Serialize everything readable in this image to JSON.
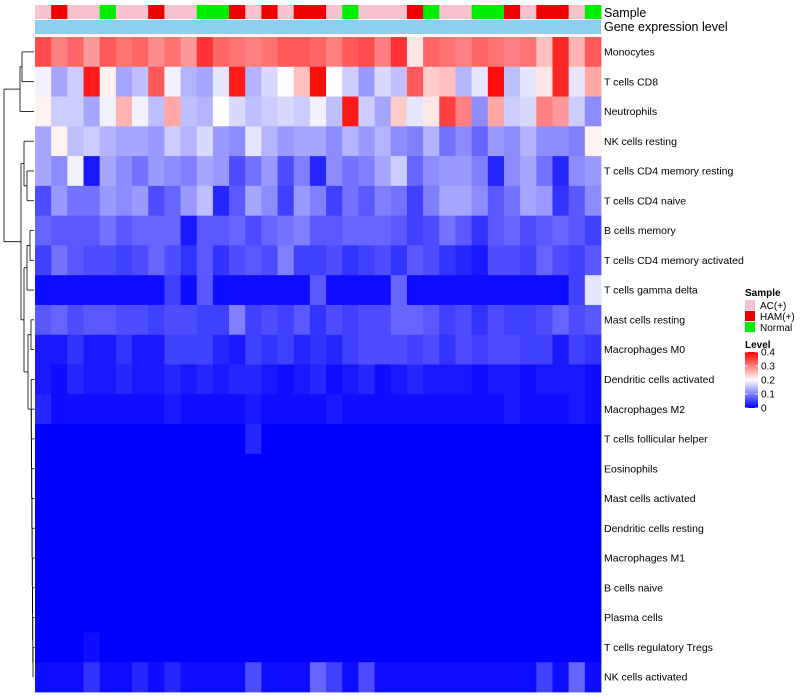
{
  "chart_data": {
    "type": "heatmap",
    "title": "",
    "annotation_labels": {
      "sample": "Sample",
      "expression": "Gene expression level"
    },
    "rows": [
      "Monocytes",
      "T cells CD8",
      "Neutrophils",
      "NK cells resting",
      "T cells CD4 memory resting",
      "T cells CD4 naive",
      "B cells memory",
      "T cells CD4 memory activated",
      "T cells gamma delta",
      "Mast cells resting",
      "Macrophages M0",
      "Dendritic cells activated",
      "Macrophages M2",
      "T cells follicular helper",
      "Eosinophils",
      "Mast cells activated",
      "Dendritic cells resting",
      "Macrophages M1",
      "B cells naive",
      "Plasma cells",
      "T cells regulatory  Tregs",
      "NK cells activated"
    ],
    "samples": [
      "AC(+)",
      "HAM(+)",
      "AC(+)",
      "AC(+)",
      "Normal",
      "AC(+)",
      "AC(+)",
      "HAM(+)",
      "AC(+)",
      "AC(+)",
      "Normal",
      "Normal",
      "HAM(+)",
      "AC(+)",
      "HAM(+)",
      "AC(+)",
      "HAM(+)",
      "HAM(+)",
      "AC(+)",
      "Normal",
      "AC(+)",
      "AC(+)",
      "AC(+)",
      "HAM(+)",
      "Normal",
      "AC(+)",
      "AC(+)",
      "Normal",
      "Normal",
      "HAM(+)",
      "AC(+)",
      "HAM(+)",
      "HAM(+)",
      "AC(+)",
      "Normal"
    ],
    "values": [
      [
        0.34,
        0.3,
        0.32,
        0.28,
        0.33,
        0.31,
        0.32,
        0.29,
        0.31,
        0.28,
        0.36,
        0.32,
        0.31,
        0.3,
        0.31,
        0.33,
        0.33,
        0.32,
        0.3,
        0.33,
        0.34,
        0.3,
        0.36,
        0.22,
        0.32,
        0.31,
        0.3,
        0.32,
        0.31,
        0.3,
        0.31,
        0.25,
        0.37,
        0.26,
        0.33
      ],
      [
        0.19,
        0.13,
        0.16,
        0.38,
        0.21,
        0.13,
        0.15,
        0.33,
        0.19,
        0.14,
        0.13,
        0.18,
        0.38,
        0.14,
        0.17,
        0.2,
        0.25,
        0.39,
        0.2,
        0.16,
        0.12,
        0.17,
        0.15,
        0.33,
        0.24,
        0.25,
        0.14,
        0.18,
        0.39,
        0.15,
        0.18,
        0.22,
        0.37,
        0.18,
        0.27
      ],
      [
        0.21,
        0.16,
        0.16,
        0.13,
        0.19,
        0.26,
        0.19,
        0.15,
        0.27,
        0.15,
        0.14,
        0.2,
        0.17,
        0.15,
        0.16,
        0.17,
        0.16,
        0.19,
        0.15,
        0.38,
        0.16,
        0.13,
        0.24,
        0.18,
        0.22,
        0.35,
        0.3,
        0.11,
        0.27,
        0.16,
        0.17,
        0.3,
        0.28,
        0.16,
        0.11
      ],
      [
        0.13,
        0.21,
        0.15,
        0.16,
        0.14,
        0.13,
        0.13,
        0.12,
        0.16,
        0.14,
        0.17,
        0.12,
        0.11,
        0.18,
        0.14,
        0.12,
        0.13,
        0.13,
        0.11,
        0.14,
        0.12,
        0.14,
        0.11,
        0.1,
        0.14,
        0.09,
        0.11,
        0.08,
        0.12,
        0.11,
        0.14,
        0.11,
        0.11,
        0.1,
        0.21
      ],
      [
        0.13,
        0.11,
        0.19,
        0.02,
        0.13,
        0.11,
        0.09,
        0.12,
        0.11,
        0.1,
        0.13,
        0.12,
        0.06,
        0.09,
        0.12,
        0.06,
        0.1,
        0.03,
        0.11,
        0.09,
        0.1,
        0.13,
        0.16,
        0.08,
        0.11,
        0.12,
        0.12,
        0.1,
        0.03,
        0.11,
        0.13,
        0.09,
        0.03,
        0.11,
        0.12
      ],
      [
        0.06,
        0.12,
        0.09,
        0.09,
        0.12,
        0.11,
        0.12,
        0.06,
        0.08,
        0.12,
        0.15,
        0.03,
        0.07,
        0.13,
        0.11,
        0.05,
        0.12,
        0.1,
        0.05,
        0.09,
        0.07,
        0.1,
        0.09,
        0.05,
        0.1,
        0.13,
        0.13,
        0.11,
        0.07,
        0.09,
        0.13,
        0.12,
        0.04,
        0.07,
        0.11
      ],
      [
        0.08,
        0.07,
        0.07,
        0.07,
        0.09,
        0.07,
        0.08,
        0.08,
        0.08,
        0.02,
        0.07,
        0.07,
        0.08,
        0.06,
        0.08,
        0.09,
        0.1,
        0.07,
        0.07,
        0.08,
        0.08,
        0.08,
        0.07,
        0.05,
        0.06,
        0.09,
        0.07,
        0.04,
        0.07,
        0.08,
        0.06,
        0.07,
        0.08,
        0.07,
        0.05
      ],
      [
        0.05,
        0.09,
        0.07,
        0.06,
        0.06,
        0.05,
        0.06,
        0.08,
        0.06,
        0.04,
        0.07,
        0.04,
        0.06,
        0.07,
        0.06,
        0.1,
        0.05,
        0.05,
        0.06,
        0.04,
        0.05,
        0.06,
        0.04,
        0.07,
        0.06,
        0.04,
        0.03,
        0.02,
        0.06,
        0.06,
        0.05,
        0.08,
        0.06,
        0.05,
        0.07
      ],
      [
        0.01,
        0.01,
        0.01,
        0.01,
        0.01,
        0.01,
        0.01,
        0.01,
        0.05,
        0.01,
        0.07,
        0.01,
        0.01,
        0.01,
        0.01,
        0.01,
        0.01,
        0.07,
        0.01,
        0.01,
        0.01,
        0.01,
        0.08,
        0.01,
        0.01,
        0.01,
        0.01,
        0.01,
        0.01,
        0.01,
        0.01,
        0.01,
        0.01,
        0.05,
        0.18
      ],
      [
        0.07,
        0.08,
        0.06,
        0.07,
        0.07,
        0.06,
        0.06,
        0.05,
        0.06,
        0.06,
        0.05,
        0.05,
        0.1,
        0.05,
        0.06,
        0.05,
        0.07,
        0.04,
        0.06,
        0.05,
        0.06,
        0.06,
        0.08,
        0.08,
        0.07,
        0.05,
        0.06,
        0.04,
        0.06,
        0.05,
        0.05,
        0.06,
        0.08,
        0.06,
        0.07
      ],
      [
        0.02,
        0.02,
        0.04,
        0.02,
        0.02,
        0.04,
        0.02,
        0.02,
        0.05,
        0.05,
        0.05,
        0.03,
        0.02,
        0.05,
        0.04,
        0.05,
        0.03,
        0.04,
        0.03,
        0.05,
        0.06,
        0.06,
        0.06,
        0.05,
        0.06,
        0.04,
        0.06,
        0.05,
        0.06,
        0.06,
        0.05,
        0.05,
        0.02,
        0.05,
        0.04
      ],
      [
        0.02,
        0.01,
        0.03,
        0.02,
        0.02,
        0.03,
        0.02,
        0.02,
        0.03,
        0.02,
        0.03,
        0.02,
        0.03,
        0.03,
        0.02,
        0.01,
        0.02,
        0.03,
        0.01,
        0.02,
        0.03,
        0.01,
        0.02,
        0.03,
        0.02,
        0.02,
        0.02,
        0.01,
        0.02,
        0.02,
        0.01,
        0.02,
        0.02,
        0.02,
        0.01
      ],
      [
        0.03,
        0.01,
        0.01,
        0.01,
        0.01,
        0.01,
        0.01,
        0.01,
        0.02,
        0.01,
        0.01,
        0.01,
        0.01,
        0.02,
        0.01,
        0.01,
        0.01,
        0.01,
        0.02,
        0.01,
        0.01,
        0.01,
        0.01,
        0.01,
        0.01,
        0.01,
        0.01,
        0.01,
        0.01,
        0.02,
        0.01,
        0.01,
        0.01,
        0.02,
        0.01
      ],
      [
        0.0,
        0.0,
        0.0,
        0.0,
        0.0,
        0.0,
        0.0,
        0.0,
        0.0,
        0.0,
        0.0,
        0.0,
        0.0,
        0.03,
        0.0,
        0.0,
        0.0,
        0.0,
        0.0,
        0.0,
        0.0,
        0.0,
        0.0,
        0.0,
        0.0,
        0.0,
        0.0,
        0.0,
        0.0,
        0.0,
        0.0,
        0.0,
        0.0,
        0.0,
        0.0
      ],
      [
        0.0,
        0.0,
        0.0,
        0.0,
        0.0,
        0.0,
        0.0,
        0.0,
        0.0,
        0.0,
        0.0,
        0.0,
        0.0,
        0.0,
        0.0,
        0.0,
        0.0,
        0.0,
        0.0,
        0.0,
        0.0,
        0.0,
        0.0,
        0.0,
        0.0,
        0.0,
        0.0,
        0.0,
        0.0,
        0.0,
        0.0,
        0.0,
        0.0,
        0.0,
        0.0
      ],
      [
        0.0,
        0.0,
        0.0,
        0.0,
        0.0,
        0.0,
        0.0,
        0.0,
        0.0,
        0.0,
        0.0,
        0.0,
        0.0,
        0.0,
        0.0,
        0.0,
        0.0,
        0.0,
        0.0,
        0.0,
        0.0,
        0.0,
        0.0,
        0.0,
        0.0,
        0.0,
        0.0,
        0.0,
        0.0,
        0.0,
        0.0,
        0.0,
        0.0,
        0.0,
        0.0
      ],
      [
        0.0,
        0.0,
        0.0,
        0.0,
        0.0,
        0.0,
        0.0,
        0.0,
        0.0,
        0.0,
        0.0,
        0.0,
        0.0,
        0.0,
        0.0,
        0.0,
        0.0,
        0.0,
        0.0,
        0.0,
        0.0,
        0.0,
        0.0,
        0.0,
        0.0,
        0.0,
        0.0,
        0.0,
        0.0,
        0.0,
        0.0,
        0.0,
        0.0,
        0.0,
        0.0
      ],
      [
        0.0,
        0.0,
        0.0,
        0.0,
        0.0,
        0.0,
        0.0,
        0.0,
        0.0,
        0.0,
        0.0,
        0.0,
        0.0,
        0.0,
        0.0,
        0.0,
        0.0,
        0.0,
        0.0,
        0.0,
        0.0,
        0.0,
        0.0,
        0.0,
        0.0,
        0.0,
        0.0,
        0.0,
        0.0,
        0.0,
        0.0,
        0.0,
        0.0,
        0.0,
        0.0
      ],
      [
        0.0,
        0.0,
        0.0,
        0.0,
        0.0,
        0.0,
        0.0,
        0.0,
        0.0,
        0.0,
        0.0,
        0.0,
        0.0,
        0.0,
        0.0,
        0.0,
        0.0,
        0.0,
        0.0,
        0.0,
        0.0,
        0.0,
        0.0,
        0.0,
        0.0,
        0.0,
        0.0,
        0.0,
        0.0,
        0.0,
        0.0,
        0.0,
        0.0,
        0.0,
        0.0
      ],
      [
        0.0,
        0.0,
        0.0,
        0.0,
        0.0,
        0.0,
        0.0,
        0.0,
        0.0,
        0.0,
        0.0,
        0.0,
        0.0,
        0.0,
        0.0,
        0.0,
        0.0,
        0.0,
        0.0,
        0.0,
        0.0,
        0.0,
        0.0,
        0.0,
        0.0,
        0.0,
        0.0,
        0.0,
        0.0,
        0.0,
        0.0,
        0.0,
        0.0,
        0.0,
        0.0
      ],
      [
        0.0,
        0.0,
        0.0,
        0.01,
        0.0,
        0.0,
        0.0,
        0.0,
        0.0,
        0.0,
        0.0,
        0.0,
        0.0,
        0.0,
        0.0,
        0.0,
        0.0,
        0.0,
        0.0,
        0.0,
        0.0,
        0.0,
        0.0,
        0.0,
        0.0,
        0.0,
        0.0,
        0.0,
        0.0,
        0.0,
        0.0,
        0.0,
        0.0,
        0.0,
        0.0
      ],
      [
        0.01,
        0.01,
        0.01,
        0.04,
        0.01,
        0.01,
        0.03,
        0.01,
        0.03,
        0.01,
        0.01,
        0.01,
        0.01,
        0.06,
        0.01,
        0.01,
        0.01,
        0.08,
        0.05,
        0.01,
        0.06,
        0.01,
        0.01,
        0.01,
        0.01,
        0.01,
        0.01,
        0.01,
        0.01,
        0.01,
        0.01,
        0.05,
        0.01,
        0.08,
        0.01
      ]
    ],
    "legend": {
      "sample_title": "Sample",
      "sample_entries": [
        {
          "label": "AC(+)",
          "color": "#f7c3cf"
        },
        {
          "label": "HAM(+)",
          "color": "#ee0000"
        },
        {
          "label": "Normal",
          "color": "#00ee00"
        }
      ],
      "level_title": "Level",
      "level_ticks": [
        0.4,
        0.3,
        0.2,
        0.1,
        0
      ],
      "scale_min": 0,
      "scale_max": 0.4
    },
    "colors": {
      "low": "#0000ff",
      "mid": "#ffffff",
      "high": "#ff0000",
      "expression_bar": "#8ccfef"
    }
  }
}
